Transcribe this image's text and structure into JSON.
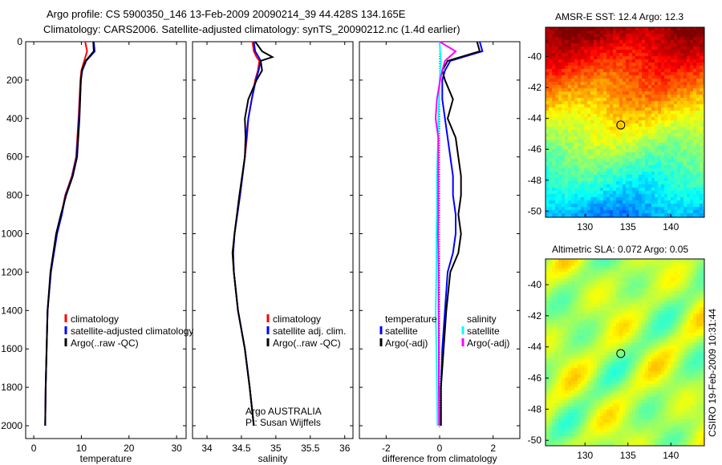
{
  "title_line1": "Argo profile: CS 5900350_146 13-Feb-2009 20090214_39 44.428S 134.165E",
  "title_line2": "Climatology: CARS2006. Satellite-adjusted climatology: synTS_20090212.nc (1.4d earlier)",
  "side_stamp": "CSIRO 19-Feb-2009 10:31:44",
  "colors": {
    "clim": "#ff0000",
    "sat": "#0000ff",
    "argo": "#000000",
    "sal_sat": "#00ffff",
    "sal_argo": "#ff00ff"
  },
  "chart_data": [
    {
      "type": "line",
      "name": "temperature",
      "xlabel": "temperature",
      "ylabel": "",
      "xlim": [
        -1.7,
        32
      ],
      "ylim": [
        2067,
        0
      ],
      "xticks": [
        "0",
        "10",
        "20",
        "30"
      ],
      "xtickvals": [
        0,
        10,
        20,
        30
      ],
      "yticks": [
        "0",
        "200",
        "400",
        "600",
        "800",
        "1000",
        "1200",
        "1400",
        "1600",
        "1800",
        "2000"
      ],
      "legend": [
        "climatology",
        "satellite-adjusted climatology",
        "Argo(..raw -QC)"
      ],
      "depth": [
        0,
        50,
        100,
        150,
        200,
        400,
        600,
        700,
        800,
        900,
        1000,
        1200,
        1400,
        1600,
        1800,
        2000
      ],
      "series": [
        {
          "name": "climatology",
          "values": [
            10.8,
            11.2,
            10.6,
            10.0,
            9.8,
            9.4,
            8.9,
            8.0,
            6.6,
            5.8,
            4.8,
            3.6,
            2.9,
            2.7,
            2.5,
            2.4
          ]
        },
        {
          "name": "satellite",
          "values": [
            12.6,
            12.8,
            11.0,
            10.2,
            9.9,
            9.5,
            9.0,
            8.1,
            6.7,
            5.9,
            4.9,
            3.6,
            2.9,
            2.7,
            2.5,
            2.4
          ]
        },
        {
          "name": "argo",
          "values": [
            12.5,
            12.6,
            10.9,
            10.1,
            9.9,
            9.6,
            9.1,
            8.2,
            6.8,
            5.7,
            4.7,
            3.5,
            2.9,
            2.7,
            2.5,
            2.4
          ]
        }
      ]
    },
    {
      "type": "line",
      "name": "salinity",
      "xlabel": "salinity",
      "xlim": [
        33.79,
        36.12
      ],
      "xticks": [
        "34",
        "34.5",
        "35",
        "35.5",
        "36"
      ],
      "xtickvals": [
        34,
        34.5,
        35,
        35.5,
        36
      ],
      "legend": [
        "climatology",
        "satellite adj. clim.",
        "Argo(..raw -QC)"
      ],
      "annotation": [
        "Argo AUSTRALIA",
        "PI: Susan Wijffels"
      ],
      "depth": [
        0,
        50,
        80,
        100,
        150,
        200,
        300,
        400,
        500,
        600,
        800,
        1000,
        1100,
        1200,
        1400,
        1600,
        1800,
        2000
      ],
      "series": [
        {
          "name": "climatology",
          "values": [
            34.66,
            34.68,
            34.72,
            34.76,
            34.74,
            34.7,
            34.65,
            34.6,
            34.58,
            34.55,
            34.48,
            34.4,
            34.38,
            34.39,
            34.45,
            34.55,
            34.62,
            34.68
          ]
        },
        {
          "name": "satellite",
          "values": [
            34.68,
            34.7,
            34.75,
            34.78,
            34.75,
            34.71,
            34.65,
            34.6,
            34.57,
            34.55,
            34.48,
            34.4,
            34.38,
            34.39,
            34.45,
            34.55,
            34.62,
            34.68
          ]
        },
        {
          "name": "argo",
          "values": [
            34.7,
            34.8,
            34.95,
            34.78,
            34.8,
            34.72,
            34.6,
            34.55,
            34.56,
            34.55,
            34.47,
            34.4,
            34.37,
            34.39,
            34.45,
            34.55,
            34.62,
            34.68
          ]
        }
      ]
    },
    {
      "type": "line",
      "name": "difference",
      "xlabel": "difference from climatology",
      "xlim": [
        -3,
        3
      ],
      "xticks": [
        "-2",
        "0",
        "2"
      ],
      "xtickvals": [
        -2,
        0,
        2
      ],
      "legend": [
        "temperature",
        "satellite",
        "Argo(-adj)",
        "salinity",
        "satellite",
        "Argo(-adj)"
      ],
      "depth": [
        0,
        50,
        100,
        150,
        200,
        300,
        400,
        500,
        600,
        700,
        800,
        900,
        1000,
        1100,
        1200,
        1400,
        1600,
        1800,
        2000
      ],
      "series": [
        {
          "name": "temp satellite",
          "values": [
            1.5,
            1.6,
            0.4,
            0.2,
            0.1,
            0.1,
            0.2,
            0.3,
            0.4,
            0.5,
            0.5,
            0.6,
            0.6,
            0.5,
            0.3,
            0.2,
            0.1,
            0.05,
            0.05
          ]
        },
        {
          "name": "temp argo",
          "values": [
            1.4,
            1.5,
            0.3,
            0.1,
            0.2,
            0.5,
            0.3,
            0.6,
            0.7,
            0.8,
            0.8,
            0.7,
            0.8,
            0.7,
            0.4,
            0.25,
            0.15,
            0.05,
            0.05
          ]
        },
        {
          "name": "sal satellite",
          "values": [
            0.0,
            0.02,
            0.05,
            0.02,
            0.0,
            -0.02,
            -0.05,
            -0.05,
            -0.08,
            -0.1,
            -0.1,
            -0.1,
            -0.12,
            -0.12,
            -0.12,
            -0.15,
            -0.12,
            -0.1,
            -0.08
          ]
        },
        {
          "name": "sal argo",
          "values": [
            0.0,
            0.6,
            0.2,
            0.1,
            0.02,
            -0.1,
            -0.15,
            -0.05,
            -0.05,
            -0.05,
            -0.05,
            -0.05,
            -0.06,
            -0.05,
            -0.04,
            -0.04,
            -0.03,
            -0.03,
            -0.02
          ]
        }
      ]
    },
    {
      "type": "heatmap",
      "name": "sst-map",
      "title": "AMSR-E SST: 12.4 Argo: 12.3",
      "xticks": [
        "130",
        "135",
        "140"
      ],
      "yticks": [
        "-40",
        "-42",
        "-44",
        "-46",
        "-48",
        "-50"
      ],
      "marker": [
        134.165,
        -44.428
      ]
    },
    {
      "type": "heatmap",
      "name": "sla-map",
      "title": "Altimetric SLA: 0.072 Argo: 0.05",
      "xticks": [
        "130",
        "135",
        "140"
      ],
      "yticks": [
        "-40",
        "-42",
        "-44",
        "-46",
        "-48",
        "-50"
      ],
      "marker": [
        134.165,
        -44.428
      ]
    }
  ]
}
